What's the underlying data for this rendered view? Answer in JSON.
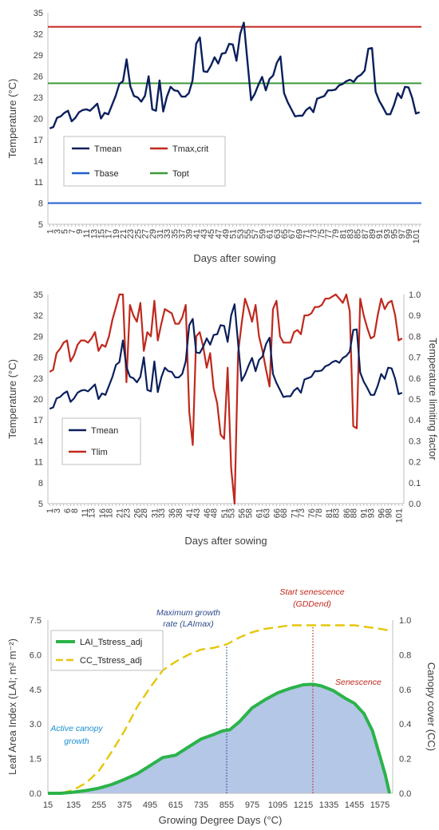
{
  "chart_data": [
    {
      "type": "line",
      "xlabel": "Days after sowing",
      "ylabel": "Temperature (°C)",
      "ylim": [
        5,
        35
      ],
      "yticks": [
        5,
        8,
        11,
        14,
        17,
        20,
        23,
        26,
        29,
        32,
        35
      ],
      "xlim": [
        1,
        102
      ],
      "xtick_labels": [
        "1",
        "3",
        "5",
        "7",
        "9",
        "11",
        "13",
        "15",
        "17",
        "19",
        "21",
        "23",
        "25",
        "27",
        "29",
        "31",
        "33",
        "35",
        "37",
        "39",
        "41",
        "43",
        "45",
        "47",
        "49",
        "51",
        "53",
        "55",
        "57",
        "59",
        "61",
        "63",
        "65",
        "67",
        "69",
        "71",
        "73",
        "75",
        "77",
        "79",
        "81",
        "83",
        "85",
        "87",
        "89",
        "91",
        "93",
        "95",
        "97",
        "99",
        "101"
      ],
      "legend_placement": "inside-left",
      "series": [
        {
          "name": "Tmean",
          "color": "#0a1f5c",
          "x": [
            1,
            2,
            3,
            4,
            5,
            6,
            7,
            8,
            9,
            10,
            11,
            12,
            13,
            14,
            15,
            16,
            17,
            18,
            19,
            20,
            21,
            22,
            23,
            24,
            25,
            26,
            27,
            28,
            29,
            30,
            31,
            32,
            33,
            34,
            35,
            36,
            37,
            38,
            39,
            40,
            41,
            42,
            43,
            44,
            45,
            46,
            47,
            48,
            49,
            50,
            51,
            52,
            53,
            54,
            55,
            56,
            57,
            58,
            59,
            60,
            61,
            62,
            63,
            64,
            65,
            66,
            67,
            68,
            69,
            70,
            71,
            72,
            73,
            74,
            75,
            76,
            77,
            78,
            79,
            80,
            81,
            82,
            83,
            84,
            85,
            86,
            87,
            88,
            89,
            90,
            91,
            92,
            93,
            94,
            95,
            96,
            97,
            98,
            99,
            100,
            101,
            102
          ],
          "values": [
            18.6,
            18.8,
            20.1,
            20.3,
            20.8,
            21.1,
            19.6,
            20.1,
            20.9,
            21.2,
            21.3,
            21.1,
            21.6,
            22.1,
            20.0,
            20.8,
            20.6,
            21.9,
            23.2,
            24.9,
            25.3,
            28.4,
            24.6,
            23.2,
            23.0,
            22.4,
            23.2,
            26.0,
            21.3,
            21.1,
            25.4,
            21.0,
            23.1,
            24.5,
            24.0,
            23.9,
            23.1,
            23.1,
            23.6,
            25.4,
            30.6,
            31.5,
            26.7,
            26.6,
            27.5,
            28.7,
            27.8,
            29.2,
            29.3,
            30.6,
            30.5,
            28.2,
            32.0,
            33.6,
            28.0,
            22.6,
            23.5,
            24.8,
            25.9,
            24.0,
            25.6,
            26.1,
            27.9,
            28.8,
            23.6,
            22.3,
            21.3,
            20.3,
            20.4,
            20.4,
            21.2,
            21.6,
            20.9,
            22.8,
            23.0,
            23.2,
            24.0,
            24.0,
            24.1,
            24.7,
            24.9,
            25.3,
            25.5,
            25.2,
            25.9,
            26.2,
            26.8,
            29.9,
            30.0,
            23.8,
            22.5,
            21.6,
            20.6,
            20.6,
            21.9,
            23.6,
            22.9,
            24.5,
            24.4,
            22.9,
            20.7,
            20.9
          ]
        },
        {
          "name": "Tmax,crit",
          "color": "#c0281c",
          "values": [
            33,
            33
          ]
        },
        {
          "name": "Tbase",
          "color": "#1f5fcf",
          "values": [
            8,
            8
          ]
        },
        {
          "name": "Topt",
          "color": "#3a9a3a",
          "values": [
            25,
            25
          ]
        }
      ]
    },
    {
      "type": "line",
      "xlabel": "Days after sowing",
      "ylabel": "Temperature (°C)",
      "y2label": "Temperature limiting factor",
      "ylim": [
        5,
        35
      ],
      "y2lim": [
        0,
        1
      ],
      "yticks": [
        5,
        8,
        11,
        14,
        17,
        20,
        23,
        26,
        29,
        32,
        35
      ],
      "y2ticks": [
        "0.0",
        "0.1",
        "0.2",
        "0.3",
        "0.4",
        "0.5",
        "0.6",
        "0.7",
        "0.8",
        "0.9",
        "1.0"
      ],
      "xtick_labels": [
        "1",
        "6",
        "11",
        "16",
        "21",
        "26",
        "31",
        "36",
        "41",
        "46",
        "51",
        "56",
        "61",
        "66",
        "71",
        "76",
        "81",
        "86",
        "91",
        "96",
        "101"
      ],
      "xtick_label_positions": [
        1,
        3,
        6,
        8,
        11,
        13,
        16,
        18,
        21,
        23,
        26,
        28,
        31,
        33,
        36,
        38,
        41,
        43,
        46,
        48,
        51,
        53,
        56,
        58,
        61,
        63,
        66,
        68,
        71,
        73,
        76,
        78,
        81,
        83,
        86,
        88,
        91,
        93,
        96,
        98,
        101
      ],
      "xtick_label_texts": [
        "1",
        "3",
        "6",
        "8",
        "11",
        "13",
        "16",
        "18",
        "21",
        "23",
        "26",
        "28",
        "31",
        "33",
        "36",
        "38",
        "41",
        "43",
        "46",
        "48",
        "51",
        "53",
        "56",
        "58",
        "61",
        "63",
        "66",
        "68",
        "71",
        "73",
        "76",
        "78",
        "81",
        "83",
        "86",
        "88",
        "91",
        "93",
        "96",
        "98",
        "101"
      ],
      "legend_placement": "lower-left",
      "series": [
        {
          "name": "Tmean",
          "color": "#0a1f5c",
          "axis": "left",
          "ref": "same as top chart Tmean"
        },
        {
          "name": "Tlim",
          "color": "#c0281c",
          "axis": "right",
          "values": [
            0.63,
            0.64,
            0.72,
            0.74,
            0.77,
            0.78,
            0.68,
            0.71,
            0.76,
            0.78,
            0.78,
            0.77,
            0.79,
            0.82,
            0.73,
            0.76,
            0.75,
            0.8,
            0.88,
            0.94,
            1.0,
            1.0,
            0.58,
            0.95,
            0.9,
            0.87,
            0.96,
            0.73,
            0.82,
            0.8,
            0.97,
            0.78,
            0.86,
            0.93,
            0.92,
            0.91,
            0.86,
            0.86,
            0.89,
            0.95,
            0.44,
            0.28,
            0.8,
            0.82,
            0.75,
            0.65,
            0.72,
            0.55,
            0.48,
            0.33,
            0.31,
            0.65,
            0.17,
            0.0,
            0.72,
            0.86,
            0.98,
            0.93,
            0.87,
            0.95,
            0.8,
            0.73,
            0.64,
            0.56,
            0.93,
            0.97,
            0.8,
            0.77,
            0.77,
            0.77,
            0.82,
            0.83,
            0.81,
            0.9,
            0.9,
            0.91,
            0.94,
            0.94,
            0.95,
            0.98,
            0.98,
            0.99,
            1.0,
            0.98,
            0.96,
            1.0,
            0.92,
            0.37,
            0.36,
            0.98,
            0.9,
            0.84,
            0.79,
            0.8,
            0.9,
            0.98,
            0.93,
            0.96,
            0.97,
            0.9,
            0.78,
            0.79
          ]
        }
      ]
    },
    {
      "type": "line",
      "xlabel": "Growing Degree Days (°C)",
      "ylabel": "Leaf Area Index (LAI; m² m⁻²)",
      "y2label": "Canopy cover (CC)",
      "ylim": [
        0,
        7.5
      ],
      "y2lim": [
        0,
        1
      ],
      "yticks": [
        "0.0",
        "1.5",
        "3.0",
        "4.5",
        "6.0",
        "7.5"
      ],
      "y2ticks": [
        "0.0",
        "0.2",
        "0.4",
        "0.6",
        "0.8",
        "1.0"
      ],
      "xticks": [
        15,
        135,
        255,
        375,
        495,
        615,
        735,
        855,
        975,
        1095,
        1215,
        1335,
        1455,
        1575
      ],
      "xlim": [
        15,
        1635
      ],
      "legend_placement": "top-left",
      "series": [
        {
          "name": "LAI_Tstress_adj",
          "color": "#2bb34a",
          "axis": "left",
          "fill": "#b4c7e7",
          "x": [
            15,
            75,
            135,
            195,
            255,
            315,
            375,
            435,
            495,
            555,
            615,
            675,
            735,
            795,
            835,
            870,
            915,
            975,
            1035,
            1095,
            1155,
            1215,
            1260,
            1300,
            1355,
            1415,
            1455,
            1500,
            1540,
            1575,
            1600,
            1620
          ],
          "values": [
            0.0,
            0.0,
            0.05,
            0.12,
            0.22,
            0.38,
            0.6,
            0.85,
            1.2,
            1.55,
            1.65,
            2.0,
            2.35,
            2.55,
            2.7,
            2.75,
            3.1,
            3.7,
            4.05,
            4.35,
            4.55,
            4.7,
            4.72,
            4.65,
            4.45,
            4.1,
            3.9,
            3.45,
            2.7,
            1.6,
            0.8,
            0.0
          ]
        },
        {
          "name": "CC_Tstress_adj",
          "color": "#e6c60a",
          "axis": "right",
          "dash": true,
          "x": [
            15,
            75,
            135,
            195,
            255,
            315,
            375,
            435,
            495,
            555,
            615,
            675,
            735,
            795,
            855,
            915,
            975,
            1035,
            1095,
            1155,
            1215,
            1275,
            1335,
            1395,
            1455,
            1515,
            1575,
            1620
          ],
          "values": [
            0.0,
            0.0,
            0.02,
            0.06,
            0.13,
            0.24,
            0.36,
            0.5,
            0.61,
            0.71,
            0.76,
            0.8,
            0.83,
            0.84,
            0.86,
            0.9,
            0.93,
            0.95,
            0.96,
            0.97,
            0.97,
            0.97,
            0.97,
            0.97,
            0.97,
            0.96,
            0.95,
            0.94
          ]
        }
      ],
      "annotations": [
        {
          "text": "Start senescence",
          "color": "#c0281c"
        },
        {
          "text": "(GDDend)",
          "color": "#c0281c"
        },
        {
          "text": "Maximum growth",
          "color": "#2e4a8a"
        },
        {
          "text": "rate (LAImax)",
          "color": "#2e4a8a"
        },
        {
          "text": "Senescence",
          "color": "#c0281c"
        },
        {
          "text": "Active canopy",
          "color": "#1a8fd0"
        },
        {
          "text": "growth",
          "color": "#1a8fd0"
        }
      ],
      "vlines": [
        {
          "x": 855,
          "color": "#2e4a8a"
        },
        {
          "x": 1260,
          "color": "#c0281c"
        }
      ]
    }
  ]
}
